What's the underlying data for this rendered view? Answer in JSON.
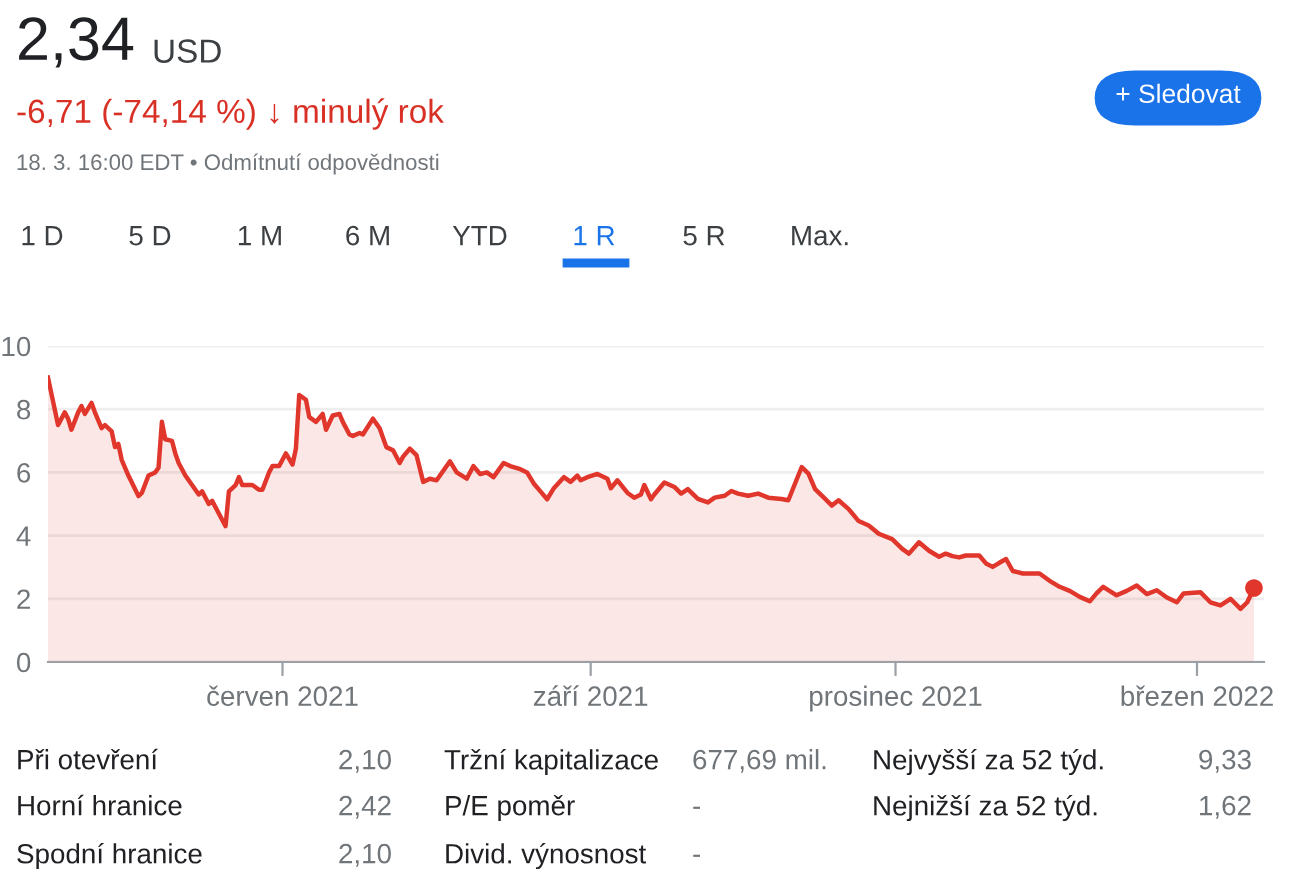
{
  "chart_data": {
    "type": "area",
    "x": [
      "2021-03-23",
      "2021-03-26",
      "2021-03-28",
      "2021-03-29",
      "2021-03-30",
      "2021-04-01",
      "2021-04-02",
      "2021-04-03",
      "2021-04-05",
      "2021-04-06",
      "2021-04-08",
      "2021-04-09",
      "2021-04-11",
      "2021-04-12",
      "2021-04-13",
      "2021-04-14",
      "2021-04-16",
      "2021-04-19",
      "2021-04-20",
      "2021-04-22",
      "2021-04-24",
      "2021-04-25",
      "2021-04-26",
      "2021-04-27",
      "2021-04-29",
      "2021-04-30",
      "2021-05-01",
      "2021-05-03",
      "2021-05-05",
      "2021-05-07",
      "2021-05-08",
      "2021-05-10",
      "2021-05-11",
      "2021-05-13",
      "2021-05-15",
      "2021-05-16",
      "2021-05-18",
      "2021-05-19",
      "2021-05-20",
      "2021-05-23",
      "2021-05-25",
      "2021-05-26",
      "2021-05-28",
      "2021-05-29",
      "2021-05-31",
      "2021-06-01",
      "2021-06-02",
      "2021-06-04",
      "2021-06-05",
      "2021-06-06",
      "2021-06-08",
      "2021-06-09",
      "2021-06-11",
      "2021-06-13",
      "2021-06-14",
      "2021-06-16",
      "2021-06-18",
      "2021-06-19",
      "2021-06-21",
      "2021-06-22",
      "2021-06-24",
      "2021-06-25",
      "2021-06-28",
      "2021-06-30",
      "2021-07-02",
      "2021-07-04",
      "2021-07-06",
      "2021-07-07",
      "2021-07-09",
      "2021-07-11",
      "2021-07-13",
      "2021-07-15",
      "2021-07-17",
      "2021-07-21",
      "2021-07-23",
      "2021-07-26",
      "2021-07-28",
      "2021-07-30",
      "2021-08-01",
      "2021-08-03",
      "2021-08-06",
      "2021-08-08",
      "2021-08-11",
      "2021-08-13",
      "2021-08-15",
      "2021-08-17",
      "2021-08-19",
      "2021-08-21",
      "2021-08-24",
      "2021-08-26",
      "2021-08-28",
      "2021-08-29",
      "2021-08-31",
      "2021-09-03",
      "2021-09-06",
      "2021-09-07",
      "2021-09-09",
      "2021-09-12",
      "2021-09-14",
      "2021-09-16",
      "2021-09-17",
      "2021-09-19",
      "2021-09-20",
      "2021-09-23",
      "2021-09-26",
      "2021-09-28",
      "2021-09-30",
      "2021-10-03",
      "2021-10-06",
      "2021-10-08",
      "2021-10-11",
      "2021-10-13",
      "2021-10-15",
      "2021-10-18",
      "2021-10-21",
      "2021-10-24",
      "2021-10-28",
      "2021-10-30",
      "2021-11-03",
      "2021-11-05",
      "2021-11-07",
      "2021-11-10",
      "2021-11-12",
      "2021-11-14",
      "2021-11-17",
      "2021-11-20",
      "2021-11-23",
      "2021-11-26",
      "2021-11-30",
      "2021-12-03",
      "2021-12-05",
      "2021-12-08",
      "2021-12-11",
      "2021-12-14",
      "2021-12-16",
      "2021-12-18",
      "2021-12-20",
      "2021-12-22",
      "2021-12-26",
      "2021-12-28",
      "2021-12-30",
      "2022-01-01",
      "2022-01-03",
      "2022-01-05",
      "2022-01-08",
      "2022-01-13",
      "2022-01-16",
      "2022-01-19",
      "2022-01-22",
      "2022-01-25",
      "2022-01-28",
      "2022-01-30",
      "2022-02-01",
      "2022-02-05",
      "2022-02-08",
      "2022-02-11",
      "2022-02-14",
      "2022-02-17",
      "2022-02-20",
      "2022-02-23",
      "2022-02-25",
      "2022-03-02",
      "2022-03-05",
      "2022-03-08",
      "2022-03-11",
      "2022-03-14",
      "2022-03-16",
      "2022-03-18"
    ],
    "series": [
      {
        "color": "#e0362c",
        "values": [
          9.0,
          7.5,
          7.9,
          7.7,
          7.35,
          7.9,
          8.1,
          7.85,
          8.2,
          7.9,
          7.4,
          7.5,
          7.3,
          6.8,
          6.9,
          6.4,
          5.9,
          5.25,
          5.35,
          5.9,
          6.0,
          6.15,
          7.6,
          7.05,
          7.0,
          6.6,
          6.3,
          5.9,
          5.6,
          5.3,
          5.4,
          5.0,
          5.1,
          4.7,
          4.3,
          5.4,
          5.6,
          5.85,
          5.6,
          5.6,
          5.45,
          5.45,
          6.0,
          6.2,
          6.2,
          6.4,
          6.6,
          6.25,
          6.75,
          8.45,
          8.3,
          7.75,
          7.6,
          7.85,
          7.35,
          7.8,
          7.85,
          7.6,
          7.2,
          7.15,
          7.25,
          7.2,
          7.7,
          7.4,
          6.8,
          6.7,
          6.3,
          6.5,
          6.75,
          6.55,
          5.7,
          5.8,
          5.75,
          6.35,
          6.0,
          5.8,
          6.2,
          5.95,
          6.0,
          5.85,
          6.3,
          6.2,
          6.1,
          6.0,
          5.65,
          5.4,
          5.15,
          5.5,
          5.85,
          5.7,
          5.9,
          5.75,
          5.85,
          5.95,
          5.8,
          5.5,
          5.75,
          5.35,
          5.2,
          5.3,
          5.6,
          5.15,
          5.3,
          5.68,
          5.54,
          5.33,
          5.47,
          5.16,
          5.05,
          5.2,
          5.26,
          5.41,
          5.33,
          5.26,
          5.33,
          5.2,
          5.16,
          5.12,
          6.17,
          5.96,
          5.47,
          5.16,
          4.95,
          5.12,
          4.84,
          4.46,
          4.32,
          4.06,
          3.89,
          3.58,
          3.43,
          3.79,
          3.52,
          3.33,
          3.43,
          3.35,
          3.31,
          3.37,
          3.37,
          3.12,
          3.01,
          3.14,
          3.26,
          2.88,
          2.8,
          2.8,
          2.57,
          2.38,
          2.25,
          2.06,
          1.92,
          2.17,
          2.38,
          2.11,
          2.25,
          2.42,
          2.15,
          2.27,
          2.04,
          1.89,
          2.17,
          2.21,
          1.89,
          1.79,
          2.0,
          1.68,
          1.89,
          2.34
        ]
      },
      {
        "type": "scatter",
        "color": "#e0362c",
        "x": [
          "2022-03-18"
        ],
        "values": [
          2.34
        ]
      }
    ],
    "xlim": [
      "2021-03-23",
      "2022-03-21"
    ],
    "xticks": [
      {
        "value": "2021-06-01",
        "label": "červen 2021"
      },
      {
        "value": "2021-09-01",
        "label": "září 2021"
      },
      {
        "value": "2021-12-01",
        "label": "prosinec 2021"
      },
      {
        "value": "2022-03-01",
        "label": "březen 2022"
      }
    ],
    "ylim": [
      0,
      10
    ],
    "yticks": [
      0,
      2,
      4,
      6,
      8,
      10
    ],
    "grid": "y",
    "annotations": [
      "2,34",
      "USD",
      "-6,71 (-74,14 %) ↓ minulý rok",
      "18. 3. 16:00 EDT • Odmítnutí odpovědnosti",
      "+ Sledovat",
      "1 D",
      "5 D",
      "1 M",
      "6 M",
      "YTD",
      "1 R",
      "5 R",
      "Max.",
      "Při otevření",
      "2,10",
      "Tržní kapitalizace",
      "677,69 mil.",
      "Nejvyšší za 52 týd.",
      "9,33",
      "Horní hranice",
      "2,42",
      "P/E poměr",
      "-",
      "Nejnižší za 52 týd.",
      "1,62",
      "Spodní hranice",
      "2,10",
      "Divid. výnosnost",
      "-"
    ]
  }
}
